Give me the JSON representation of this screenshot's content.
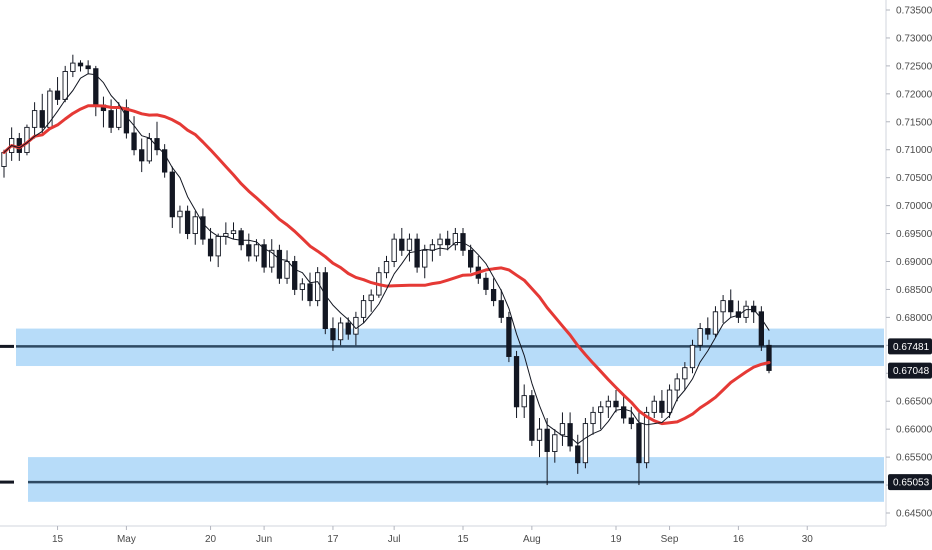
{
  "chart_data": {
    "type": "candlestick",
    "ylim": [
      0.6425,
      0.7375
    ],
    "y_ticks": [
      "0.73500",
      "0.73000",
      "0.72500",
      "0.72000",
      "0.71500",
      "0.71000",
      "0.70500",
      "0.70000",
      "0.69500",
      "0.69000",
      "0.68500",
      "0.68000",
      "0.67500",
      "0.67000",
      "0.66500",
      "0.66000",
      "0.65500",
      "0.65000",
      "0.64500"
    ],
    "x_ticks": [
      "15",
      "May",
      "20",
      "Jun",
      "17",
      "Jul",
      "15",
      "Aug",
      "19",
      "Sep",
      "16",
      "30"
    ],
    "x_tick_index": [
      7,
      16,
      27,
      34,
      43,
      51,
      60,
      69,
      80,
      87,
      96,
      105
    ],
    "price_labels": [
      {
        "text": "0.67481",
        "value": 0.67481,
        "color": "#131722"
      },
      {
        "text": "0.67048",
        "value": 0.67048,
        "color": "#131722"
      },
      {
        "text": "0.65053",
        "value": 0.65053,
        "color": "#131722"
      }
    ],
    "zones": [
      {
        "top": 0.678,
        "bottom": 0.6713,
        "line": 0.67481,
        "color": "#9fd0f7"
      },
      {
        "top": 0.655,
        "bottom": 0.647,
        "line": 0.65053,
        "color": "#9fd0f7"
      }
    ],
    "candles": [
      [
        0.707,
        0.71,
        0.705,
        0.7095
      ],
      [
        0.7095,
        0.714,
        0.708,
        0.712
      ],
      [
        0.712,
        0.713,
        0.708,
        0.7095
      ],
      [
        0.7095,
        0.7145,
        0.709,
        0.714
      ],
      [
        0.714,
        0.7185,
        0.712,
        0.717
      ],
      [
        0.717,
        0.72,
        0.713,
        0.714
      ],
      [
        0.714,
        0.721,
        0.714,
        0.7205
      ],
      [
        0.7205,
        0.723,
        0.718,
        0.719
      ],
      [
        0.719,
        0.725,
        0.7185,
        0.724
      ],
      [
        0.724,
        0.727,
        0.723,
        0.7255
      ],
      [
        0.7255,
        0.726,
        0.724,
        0.725
      ],
      [
        0.725,
        0.726,
        0.7235,
        0.7245
      ],
      [
        0.7245,
        0.725,
        0.716,
        0.718
      ],
      [
        0.718,
        0.7195,
        0.714,
        0.717
      ],
      [
        0.717,
        0.719,
        0.713,
        0.714
      ],
      [
        0.714,
        0.7185,
        0.7135,
        0.7175
      ],
      [
        0.7175,
        0.719,
        0.712,
        0.713
      ],
      [
        0.713,
        0.716,
        0.709,
        0.71
      ],
      [
        0.71,
        0.712,
        0.706,
        0.708
      ],
      [
        0.708,
        0.713,
        0.7075,
        0.712
      ],
      [
        0.712,
        0.715,
        0.709,
        0.71
      ],
      [
        0.71,
        0.711,
        0.705,
        0.706
      ],
      [
        0.706,
        0.707,
        0.696,
        0.698
      ],
      [
        0.698,
        0.7,
        0.695,
        0.699
      ],
      [
        0.699,
        0.7,
        0.694,
        0.695
      ],
      [
        0.695,
        0.699,
        0.693,
        0.698
      ],
      [
        0.698,
        0.6995,
        0.693,
        0.694
      ],
      [
        0.694,
        0.696,
        0.69,
        0.691
      ],
      [
        0.691,
        0.695,
        0.689,
        0.6945
      ],
      [
        0.6945,
        0.697,
        0.693,
        0.695
      ],
      [
        0.695,
        0.697,
        0.694,
        0.6955
      ],
      [
        0.6955,
        0.696,
        0.692,
        0.693
      ],
      [
        0.693,
        0.695,
        0.69,
        0.691
      ],
      [
        0.691,
        0.694,
        0.69,
        0.693
      ],
      [
        0.693,
        0.694,
        0.688,
        0.689
      ],
      [
        0.689,
        0.694,
        0.688,
        0.692
      ],
      [
        0.692,
        0.693,
        0.686,
        0.687
      ],
      [
        0.687,
        0.692,
        0.686,
        0.69
      ],
      [
        0.69,
        0.691,
        0.684,
        0.685
      ],
      [
        0.685,
        0.687,
        0.683,
        0.686
      ],
      [
        0.686,
        0.688,
        0.682,
        0.683
      ],
      [
        0.683,
        0.689,
        0.682,
        0.688
      ],
      [
        0.688,
        0.689,
        0.677,
        0.678
      ],
      [
        0.678,
        0.68,
        0.674,
        0.676
      ],
      [
        0.676,
        0.68,
        0.675,
        0.679
      ],
      [
        0.679,
        0.68,
        0.676,
        0.677
      ],
      [
        0.677,
        0.681,
        0.675,
        0.68
      ],
      [
        0.68,
        0.684,
        0.679,
        0.683
      ],
      [
        0.683,
        0.685,
        0.681,
        0.684
      ],
      [
        0.684,
        0.689,
        0.6835,
        0.688
      ],
      [
        0.688,
        0.691,
        0.687,
        0.69
      ],
      [
        0.69,
        0.695,
        0.689,
        0.694
      ],
      [
        0.694,
        0.696,
        0.691,
        0.692
      ],
      [
        0.692,
        0.695,
        0.69,
        0.694
      ],
      [
        0.694,
        0.695,
        0.688,
        0.689
      ],
      [
        0.689,
        0.693,
        0.687,
        0.692
      ],
      [
        0.692,
        0.694,
        0.69,
        0.693
      ],
      [
        0.693,
        0.695,
        0.691,
        0.694
      ],
      [
        0.694,
        0.6955,
        0.692,
        0.693
      ],
      [
        0.693,
        0.696,
        0.692,
        0.695
      ],
      [
        0.695,
        0.696,
        0.691,
        0.692
      ],
      [
        0.692,
        0.693,
        0.688,
        0.689
      ],
      [
        0.689,
        0.691,
        0.686,
        0.687
      ],
      [
        0.687,
        0.688,
        0.684,
        0.685
      ],
      [
        0.685,
        0.687,
        0.682,
        0.683
      ],
      [
        0.683,
        0.685,
        0.679,
        0.68
      ],
      [
        0.68,
        0.681,
        0.672,
        0.673
      ],
      [
        0.673,
        0.674,
        0.662,
        0.664
      ],
      [
        0.664,
        0.668,
        0.662,
        0.666
      ],
      [
        0.666,
        0.667,
        0.657,
        0.658
      ],
      [
        0.658,
        0.662,
        0.655,
        0.66
      ],
      [
        0.66,
        0.662,
        0.65,
        0.656
      ],
      [
        0.656,
        0.66,
        0.654,
        0.659
      ],
      [
        0.659,
        0.663,
        0.657,
        0.661
      ],
      [
        0.661,
        0.663,
        0.656,
        0.657
      ],
      [
        0.657,
        0.659,
        0.652,
        0.654
      ],
      [
        0.654,
        0.662,
        0.653,
        0.661
      ],
      [
        0.661,
        0.664,
        0.659,
        0.663
      ],
      [
        0.663,
        0.665,
        0.66,
        0.664
      ],
      [
        0.664,
        0.666,
        0.662,
        0.665
      ],
      [
        0.665,
        0.667,
        0.663,
        0.664
      ],
      [
        0.664,
        0.666,
        0.661,
        0.662
      ],
      [
        0.662,
        0.664,
        0.66,
        0.661
      ],
      [
        0.661,
        0.663,
        0.65,
        0.654
      ],
      [
        0.654,
        0.664,
        0.653,
        0.663
      ],
      [
        0.663,
        0.666,
        0.662,
        0.665
      ],
      [
        0.665,
        0.667,
        0.662,
        0.663
      ],
      [
        0.663,
        0.668,
        0.662,
        0.667
      ],
      [
        0.667,
        0.67,
        0.665,
        0.669
      ],
      [
        0.669,
        0.672,
        0.667,
        0.671
      ],
      [
        0.671,
        0.676,
        0.67,
        0.675
      ],
      [
        0.675,
        0.679,
        0.674,
        0.678
      ],
      [
        0.678,
        0.68,
        0.676,
        0.677
      ],
      [
        0.677,
        0.682,
        0.6765,
        0.681
      ],
      [
        0.681,
        0.684,
        0.679,
        0.683
      ],
      [
        0.683,
        0.685,
        0.68,
        0.681
      ],
      [
        0.681,
        0.683,
        0.679,
        0.68
      ],
      [
        0.68,
        0.683,
        0.679,
        0.682
      ],
      [
        0.682,
        0.683,
        0.679,
        0.681
      ],
      [
        0.681,
        0.682,
        0.674,
        0.675
      ],
      [
        0.675,
        0.676,
        0.67,
        0.6705
      ]
    ],
    "series": [
      {
        "color": "#e53935",
        "width": 3,
        "period": 20,
        "from": 0
      },
      {
        "color": "#131722",
        "width": 1,
        "period": 5,
        "from": 0
      }
    ],
    "colors": {
      "up": "#ffffff",
      "down": "#131722",
      "wick": "#131722",
      "zone_line": "#2e4a63",
      "axis": "#b2b5be",
      "marker": "#131722"
    }
  }
}
